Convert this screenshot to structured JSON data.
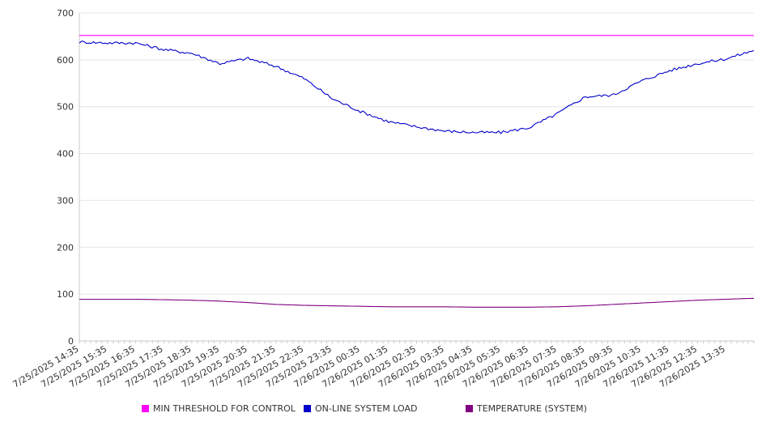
{
  "chart_data": {
    "type": "line",
    "title": "",
    "xlabel": "",
    "ylabel": "",
    "ylim": [
      0,
      700
    ],
    "yticks": [
      0,
      100,
      200,
      300,
      400,
      500,
      600,
      700
    ],
    "grid": true,
    "legend_position": "bottom",
    "x_tick_labels": [
      "7/25/2025 14:35",
      "7/25/2025 15:35",
      "7/25/2025 16:35",
      "7/25/2025 17:35",
      "7/25/2025 18:35",
      "7/25/2025 19:35",
      "7/25/2025 20:35",
      "7/25/2025 21:35",
      "7/25/2025 22:35",
      "7/25/2025 23:35",
      "7/26/2025 00:35",
      "7/26/2025 01:35",
      "7/26/2025 02:35",
      "7/26/2025 03:35",
      "7/26/2025 04:35",
      "7/26/2025 05:35",
      "7/26/2025 06:35",
      "7/26/2025 07:35",
      "7/26/2025 08:35",
      "7/26/2025 09:35",
      "7/26/2025 10:35",
      "7/26/2025 11:35",
      "7/26/2025 12:35",
      "7/26/2025 13:35"
    ],
    "x_range": [
      "7/25/2025 14:35",
      "7/26/2025 14:35"
    ],
    "x": [
      "7/25/2025 14:35",
      "7/25/2025 15:35",
      "7/25/2025 16:35",
      "7/25/2025 17:35",
      "7/25/2025 18:35",
      "7/25/2025 19:35",
      "7/25/2025 20:35",
      "7/25/2025 21:35",
      "7/25/2025 22:35",
      "7/25/2025 23:35",
      "7/26/2025 00:35",
      "7/26/2025 01:35",
      "7/26/2025 02:35",
      "7/26/2025 03:35",
      "7/26/2025 04:35",
      "7/26/2025 05:35",
      "7/26/2025 06:35",
      "7/26/2025 07:35",
      "7/26/2025 08:35",
      "7/26/2025 09:35",
      "7/26/2025 10:35",
      "7/26/2025 11:35",
      "7/26/2025 12:35",
      "7/26/2025 13:35",
      "7/26/2025 14:35"
    ],
    "series": [
      {
        "name": "MIN THRESHOLD FOR CONTROL",
        "color": "#ff00ff",
        "values": [
          652,
          652,
          652,
          652,
          652,
          652,
          652,
          652,
          652,
          652,
          652,
          652,
          652,
          652,
          652,
          652,
          652,
          652,
          652,
          652,
          652,
          652,
          652,
          652,
          652
        ]
      },
      {
        "name": "ON-LINE SYSTEM LOAD",
        "color": "#0000cc",
        "values": [
          638,
          636,
          636,
          622,
          614,
          592,
          603,
          586,
          560,
          517,
          490,
          468,
          457,
          448,
          445,
          445,
          455,
          485,
          521,
          525,
          555,
          577,
          592,
          602,
          620
        ]
      },
      {
        "name": "TEMPERATURE (SYSTEM)",
        "color": "#800080",
        "values": [
          89,
          89,
          89,
          88,
          87,
          85,
          82,
          78,
          76,
          75,
          74,
          73,
          73,
          73,
          72,
          72,
          72,
          73,
          75,
          78,
          81,
          84,
          87,
          89,
          91
        ]
      }
    ]
  },
  "legend": {
    "items": [
      {
        "label": "MIN THRESHOLD FOR CONTROL",
        "color": "#ff00ff"
      },
      {
        "label": "ON-LINE SYSTEM LOAD",
        "color": "#0000cc"
      },
      {
        "label": "TEMPERATURE (SYSTEM)",
        "color": "#800080"
      }
    ]
  }
}
